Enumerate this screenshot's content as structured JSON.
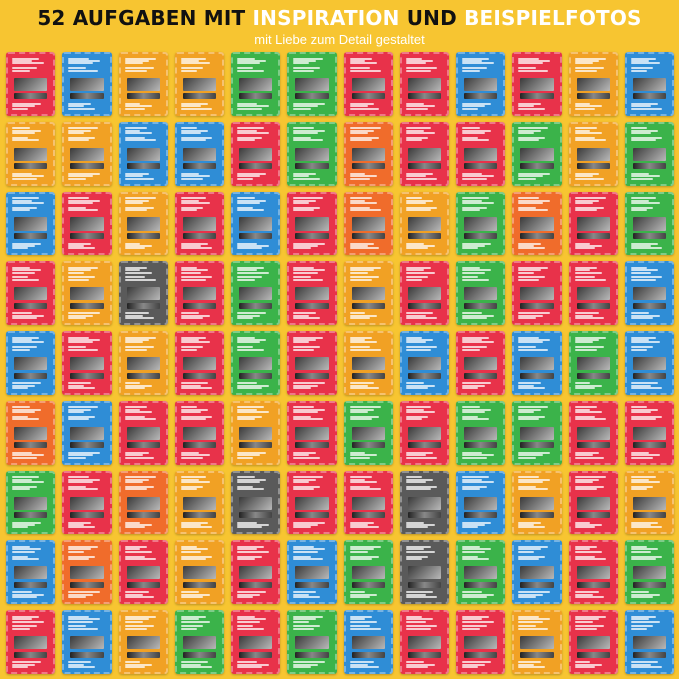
{
  "header": {
    "title_part1": "52 AUFGABEN MIT ",
    "title_part2": "INSPIRATION",
    "title_part3": " UND ",
    "title_part4": "BEISPIELFOTOS",
    "subtitle": "mit Liebe zum Detail gestaltet"
  },
  "colors": {
    "background": "#f7c531",
    "highlight": "#ffffff",
    "card_palette": [
      "#e8324a",
      "#f1a124",
      "#2f8dd6",
      "#3bb34a",
      "#5a5a5a",
      "#f06c2b"
    ]
  },
  "cards": [
    "#e8324a",
    "#2f8dd6",
    "#f1a124",
    "#f1a124",
    "#3bb34a",
    "#3bb34a",
    "#e8324a",
    "#e8324a",
    "#2f8dd6",
    "#e8324a",
    "#f1a124",
    "#2f8dd6",
    "#f1a124",
    "#f1a124",
    "#2f8dd6",
    "#2f8dd6",
    "#e8324a",
    "#3bb34a",
    "#f06c2b",
    "#e8324a",
    "#e8324a",
    "#3bb34a",
    "#f1a124",
    "#3bb34a",
    "#2f8dd6",
    "#e8324a",
    "#f1a124",
    "#e8324a",
    "#2f8dd6",
    "#e8324a",
    "#f06c2b",
    "#f1a124",
    "#3bb34a",
    "#f06c2b",
    "#e8324a",
    "#3bb34a",
    "#e8324a",
    "#f1a124",
    "#5a5a5a",
    "#e8324a",
    "#3bb34a",
    "#e8324a",
    "#f1a124",
    "#e8324a",
    "#3bb34a",
    "#e8324a",
    "#e8324a",
    "#2f8dd6",
    "#2f8dd6",
    "#e8324a",
    "#f1a124",
    "#e8324a",
    "#3bb34a",
    "#e8324a",
    "#f1a124",
    "#2f8dd6",
    "#e8324a",
    "#2f8dd6",
    "#3bb34a",
    "#2f8dd6",
    "#f06c2b",
    "#2f8dd6",
    "#e8324a",
    "#e8324a",
    "#f1a124",
    "#e8324a",
    "#3bb34a",
    "#e8324a",
    "#3bb34a",
    "#3bb34a",
    "#e8324a",
    "#e8324a",
    "#3bb34a",
    "#e8324a",
    "#f06c2b",
    "#f1a124",
    "#5a5a5a",
    "#e8324a",
    "#e8324a",
    "#5a5a5a",
    "#2f8dd6",
    "#f1a124",
    "#e8324a",
    "#f1a124",
    "#2f8dd6",
    "#f06c2b",
    "#e8324a",
    "#f1a124",
    "#e8324a",
    "#2f8dd6",
    "#3bb34a",
    "#5a5a5a",
    "#3bb34a",
    "#2f8dd6",
    "#e8324a",
    "#3bb34a",
    "#e8324a",
    "#2f8dd6",
    "#f1a124",
    "#3bb34a",
    "#e8324a",
    "#3bb34a",
    "#2f8dd6",
    "#e8324a",
    "#e8324a",
    "#f1a124",
    "#e8324a",
    "#2f8dd6"
  ]
}
